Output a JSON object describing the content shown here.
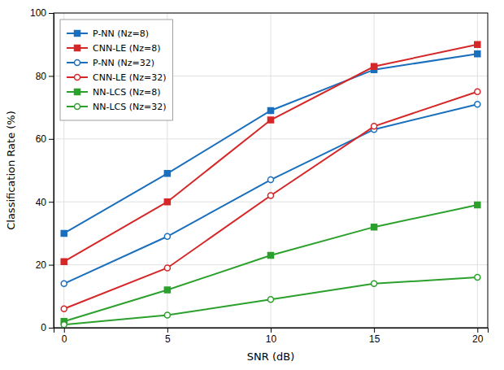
{
  "chart_data": {
    "type": "line",
    "x_label": "SNR (dB)",
    "y_label": "Classification Rate (%)",
    "x": [
      0,
      5,
      10,
      15,
      20
    ],
    "series": [
      {
        "name": "P-NN (Nz=8)",
        "color": "#1a6fbd",
        "marker": "square",
        "values": [
          30,
          49,
          69,
          82,
          87
        ]
      },
      {
        "name": "CNN-LE (Nz=8)",
        "color": "#d62728",
        "marker": "square",
        "values": [
          21,
          40,
          66,
          83,
          90
        ]
      },
      {
        "name": "P-NN (Nz=32)",
        "color": "#1a6fbd",
        "marker": "open-circle",
        "values": [
          14,
          29,
          47,
          63,
          71
        ]
      },
      {
        "name": "CNN-LE (Nz=32)",
        "color": "#d62728",
        "marker": "open-circle",
        "values": [
          6,
          19,
          42,
          64,
          75
        ]
      },
      {
        "name": "NN-LCS (Nz=8)",
        "color": "#2ca02c",
        "marker": "square",
        "values": [
          2,
          12,
          23,
          32,
          39
        ]
      },
      {
        "name": "NN-LCS (Nz=32)",
        "color": "#2ca02c",
        "marker": "open-circle",
        "values": [
          1,
          4,
          9,
          14,
          16
        ]
      }
    ],
    "xlim": [
      -0.5,
      20.5
    ],
    "ylim": [
      0,
      100
    ],
    "xticks": [
      0,
      5,
      10,
      15,
      20
    ],
    "yticks": [
      0,
      20,
      40,
      60,
      80,
      100
    ],
    "grid": true,
    "legend": "upper-left"
  }
}
